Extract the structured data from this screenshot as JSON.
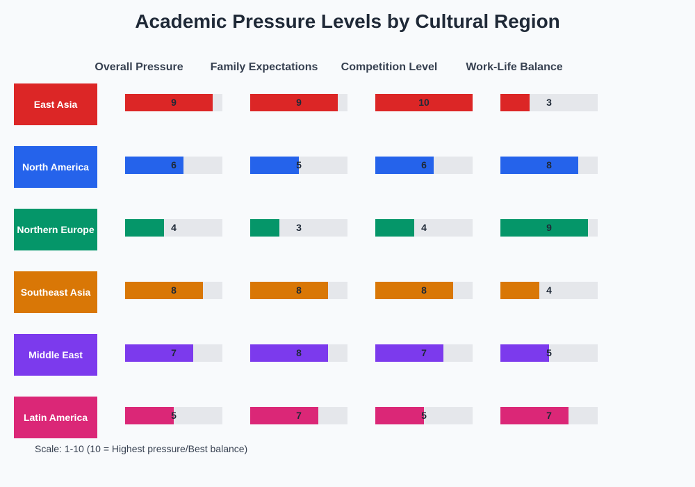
{
  "chart_data": {
    "type": "bar",
    "title": "Academic Pressure Levels by Cultural Region",
    "metrics": [
      "Overall Pressure",
      "Family Expectations",
      "Competition Level",
      "Work-Life Balance"
    ],
    "xlim": [
      0,
      10
    ],
    "track_color": "#e5e7eb",
    "regions": [
      {
        "name": "East Asia",
        "color": "#dc2626",
        "values": [
          9,
          9,
          10,
          3
        ]
      },
      {
        "name": "North America",
        "color": "#2563eb",
        "values": [
          6,
          5,
          6,
          8
        ]
      },
      {
        "name": "Northern Europe",
        "color": "#059669",
        "values": [
          4,
          3,
          4,
          9
        ]
      },
      {
        "name": "Southeast Asia",
        "color": "#d97706",
        "values": [
          8,
          8,
          8,
          4
        ]
      },
      {
        "name": "Middle East",
        "color": "#7c3aed",
        "values": [
          7,
          8,
          7,
          5
        ]
      },
      {
        "name": "Latin America",
        "color": "#db2777",
        "values": [
          5,
          7,
          5,
          7
        ]
      }
    ],
    "note": "Scale: 1-10 (10 = Highest pressure/Best balance)"
  }
}
